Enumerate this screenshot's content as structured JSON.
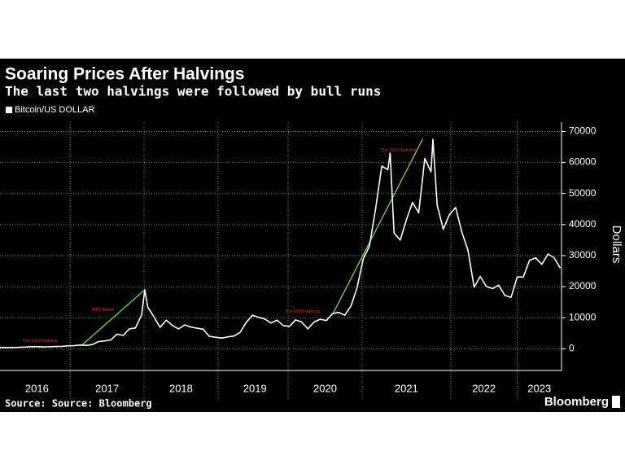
{
  "chart_data": {
    "type": "line",
    "title": "Soaring Prices After Halvings",
    "subtitle": "The last two halvings were followed by bull runs",
    "series": [
      {
        "name": "Bitcoin/US DOLLAR",
        "color": "#ffffff",
        "x": [
          2016.0,
          2016.083,
          2016.167,
          2016.25,
          2016.333,
          2016.417,
          2016.5,
          2016.583,
          2016.667,
          2016.75,
          2016.833,
          2016.917,
          2017.0,
          2017.083,
          2017.167,
          2017.25,
          2017.333,
          2017.417,
          2017.5,
          2017.583,
          2017.667,
          2017.75,
          2017.833,
          2017.917,
          2017.96,
          2018.0,
          2018.083,
          2018.167,
          2018.25,
          2018.333,
          2018.417,
          2018.5,
          2018.583,
          2018.667,
          2018.75,
          2018.833,
          2018.917,
          2019.0,
          2019.083,
          2019.167,
          2019.25,
          2019.333,
          2019.417,
          2019.5,
          2019.583,
          2019.667,
          2019.75,
          2019.833,
          2019.917,
          2020.0,
          2020.083,
          2020.167,
          2020.25,
          2020.333,
          2020.417,
          2020.5,
          2020.583,
          2020.667,
          2020.75,
          2020.833,
          2020.917,
          2021.0,
          2021.083,
          2021.167,
          2021.25,
          2021.28,
          2021.333,
          2021.417,
          2021.5,
          2021.583,
          2021.667,
          2021.75,
          2021.833,
          2021.86,
          2021.917,
          2022.0,
          2022.083,
          2022.167,
          2022.25,
          2022.333,
          2022.417,
          2022.5,
          2022.583,
          2022.667,
          2022.75,
          2022.833,
          2022.917,
          2023.0,
          2023.083,
          2023.167,
          2023.25,
          2023.333,
          2023.417,
          2023.5,
          2023.583
        ],
        "values": [
          430,
          400,
          415,
          450,
          530,
          670,
          650,
          575,
          610,
          700,
          740,
          960,
          970,
          1190,
          1080,
          1350,
          2300,
          2500,
          2870,
          4700,
          4300,
          6400,
          6700,
          10900,
          19000,
          13400,
          10300,
          6900,
          9200,
          7500,
          6400,
          7700,
          7000,
          6600,
          6300,
          4000,
          3700,
          3450,
          3800,
          4100,
          5300,
          8500,
          10800,
          10100,
          9600,
          8300,
          9200,
          7500,
          7200,
          9300,
          8600,
          6400,
          8600,
          9500,
          9100,
          11300,
          11700,
          10800,
          13800,
          19700,
          29000,
          33000,
          45000,
          58800,
          57700,
          63000,
          37300,
          35000,
          41500,
          47100,
          43800,
          61300,
          57000,
          67500,
          46300,
          38500,
          43200,
          45500,
          37700,
          31800,
          19800,
          23300,
          20050,
          19400,
          20500,
          17200,
          16550,
          23100,
          23150,
          28500,
          29250,
          27200,
          30500,
          29300,
          26000
        ]
      }
    ],
    "xlim": [
      2016.0,
      2023.6
    ],
    "xticks": [
      {
        "value": 2016.5,
        "label": "2016"
      },
      {
        "value": 2017.45,
        "label": "2017"
      },
      {
        "value": 2018.45,
        "label": "2018"
      },
      {
        "value": 2019.45,
        "label": "2019"
      },
      {
        "value": 2020.4,
        "label": "2020"
      },
      {
        "value": 2021.5,
        "label": "2021"
      },
      {
        "value": 2022.55,
        "label": "2022"
      },
      {
        "value": 2023.3,
        "label": "2023"
      }
    ],
    "xgrid": [
      2016.95,
      2017.95,
      2018.95,
      2019.9,
      2020.9,
      2022.1,
      2023.0
    ],
    "ylim": [
      -7000,
      73000
    ],
    "yticks": [
      0,
      10000,
      20000,
      30000,
      40000,
      50000,
      60000,
      70000
    ],
    "ylabel": "Dollars",
    "grid": true,
    "trend_color": "#7cc83c",
    "trend_lines": [
      {
        "x": [
          2017.1,
          2017.96
        ],
        "values": [
          1000,
          19000
        ]
      },
      {
        "x": [
          2020.5,
          2021.72
        ],
        "values": [
          11000,
          67500
        ]
      }
    ],
    "annotation_color": "#e0302a",
    "annotations": [
      {
        "text": "The 2016 Halving",
        "x": 2016.3,
        "y": 2500
      },
      {
        "text": "BTC Boom",
        "x": 2017.25,
        "y": 12500
      },
      {
        "text": "The 2020 Halving",
        "x": 2019.85,
        "y": 12000
      },
      {
        "text": "The 2021 Bull Run",
        "x": 2021.15,
        "y": 64000
      }
    ]
  },
  "footer": {
    "source": "Source: Source: Bloomberg",
    "brand": "Bloomberg"
  }
}
